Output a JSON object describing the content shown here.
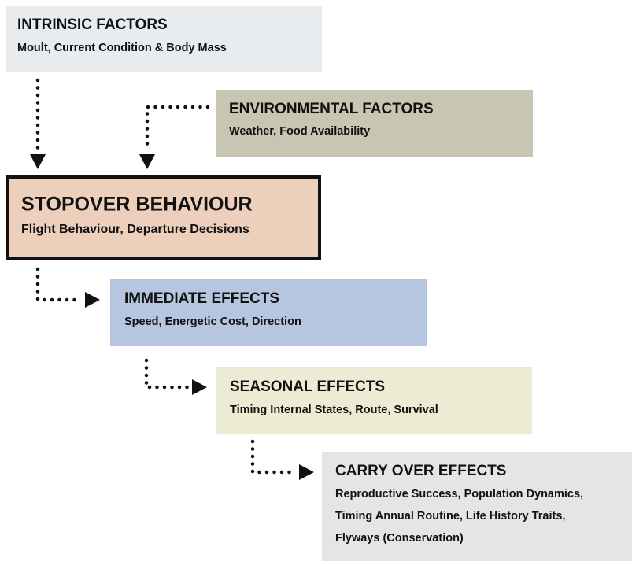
{
  "boxes": [
    {
      "title": "INTRINSIC FACTORS",
      "lines": [
        "Moult, Current Condition & Body Mass"
      ]
    },
    {
      "title": "ENVIRONMENTAL FACTORS",
      "lines": [
        "Weather, Food Availability"
      ]
    },
    {
      "title": "STOPOVER BEHAVIOUR",
      "lines": [
        "Flight Behaviour, Departure Decisions"
      ]
    },
    {
      "title": "IMMEDIATE EFFECTS",
      "lines": [
        "Speed, Energetic Cost, Direction"
      ]
    },
    {
      "title": "SEASONAL EFFECTS",
      "lines": [
        "Timing Internal States, Route, Survival"
      ]
    },
    {
      "title": "CARRY OVER EFFECTS",
      "lines": [
        "Reproductive Success, Population Dynamics,",
        "Timing Annual Routine, Life History Traits,",
        "Flyways (Conservation)"
      ]
    }
  ]
}
